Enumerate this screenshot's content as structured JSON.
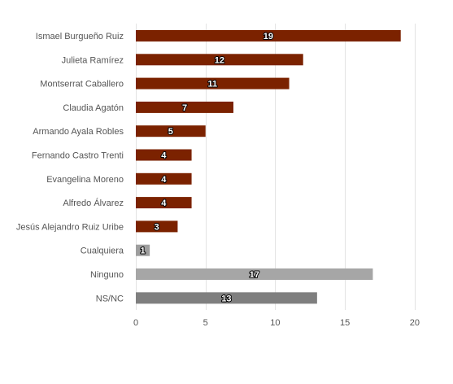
{
  "chart_data": {
    "type": "bar",
    "orientation": "horizontal",
    "categories": [
      "Ismael Burgueño Ruiz",
      "Julieta Ramírez",
      "Montserrat Caballero",
      "Claudia Agatón",
      "Armando Ayala Robles",
      "Fernando Castro Trenti",
      "Evangelina Moreno",
      "Alfredo Álvarez",
      "Jesús Alejandro Ruiz Uribe",
      "Cualquiera",
      "Ninguno",
      "NS/NC"
    ],
    "values": [
      19,
      12,
      11,
      7,
      5,
      4,
      4,
      4,
      3,
      1,
      17,
      13
    ],
    "value_labels": [
      "19",
      "12",
      "11",
      "7",
      "5",
      "4",
      "4",
      "4",
      "3",
      "1",
      "17",
      "13"
    ],
    "bar_colors": [
      "#7b2200",
      "#7b2200",
      "#7b2200",
      "#7b2200",
      "#7b2200",
      "#7b2200",
      "#7b2200",
      "#7b2200",
      "#7b2200",
      "#9e9e9e",
      "#a6a6a6",
      "#7f7f7f"
    ],
    "xlim": [
      0,
      21
    ],
    "xticks": [
      0,
      5,
      10,
      15,
      20
    ],
    "xtick_labels": [
      "0",
      "5",
      "10",
      "15",
      "20"
    ],
    "grid": true,
    "title": "",
    "xlabel": "",
    "ylabel": ""
  }
}
